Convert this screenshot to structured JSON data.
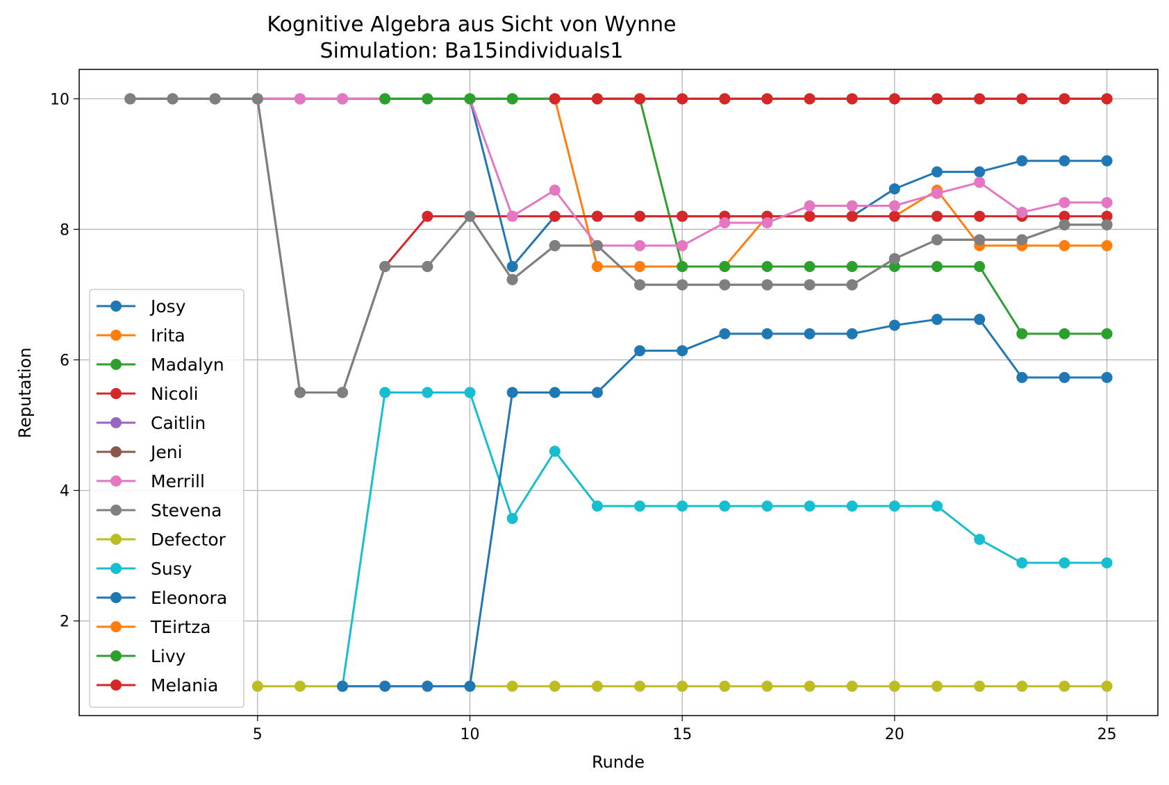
{
  "chart_data": {
    "type": "line",
    "title": "Kognitive Algebra aus Sicht von Wynne",
    "subtitle": "Simulation: Ba15individuals1",
    "xlabel": "Runde",
    "ylabel": "Reputation",
    "xlim": [
      0.8,
      26.2
    ],
    "ylim": [
      0.55,
      10.45
    ],
    "xticks": [
      5,
      10,
      15,
      20,
      25
    ],
    "yticks": [
      2,
      4,
      6,
      8,
      10
    ],
    "grid": true,
    "legend_position": "lower-left",
    "series": [
      {
        "name": "Josy",
        "color": "#1f77b4",
        "x": [
          2,
          3,
          4,
          5,
          6,
          7,
          8,
          9,
          10,
          11,
          12,
          13,
          14,
          15,
          16,
          17,
          18,
          19,
          20,
          21,
          22,
          23,
          24,
          25
        ],
        "y": [
          10,
          10,
          10,
          10,
          10,
          10,
          10,
          10,
          10,
          7.43,
          8.2,
          8.2,
          8.2,
          8.2,
          8.2,
          8.2,
          8.2,
          8.2,
          8.62,
          8.88,
          8.88,
          9.05,
          9.05,
          9.05
        ]
      },
      {
        "name": "Irita",
        "color": "#ff7f0e",
        "x": [
          2,
          3,
          4,
          5,
          6,
          7,
          8,
          9,
          10,
          11,
          12,
          13,
          14,
          15,
          16,
          17,
          18,
          19,
          20,
          21,
          22,
          23,
          24,
          25
        ],
        "y": [
          10,
          10,
          10,
          10,
          10,
          10,
          10,
          10,
          10,
          10,
          10,
          7.43,
          7.43,
          7.43,
          7.43,
          8.2,
          8.2,
          8.2,
          8.2,
          8.6,
          7.75,
          7.75,
          7.75,
          7.75
        ]
      },
      {
        "name": "Madalyn",
        "color": "#2ca02c",
        "x": [
          2,
          3,
          4,
          5,
          6,
          7,
          8,
          9,
          10,
          11,
          12,
          13,
          14,
          15,
          16,
          17,
          18,
          19,
          20,
          21,
          22,
          23,
          24,
          25
        ],
        "y": [
          10,
          10,
          10,
          10,
          10,
          10,
          10,
          10,
          10,
          10,
          10,
          10,
          10,
          7.43,
          7.43,
          7.43,
          7.43,
          7.43,
          7.43,
          7.43,
          7.43,
          6.4,
          6.4,
          6.4
        ]
      },
      {
        "name": "Nicoli",
        "color": "#d62728",
        "x": [
          2,
          3,
          4,
          5,
          6,
          7,
          8,
          9,
          10,
          11,
          12,
          13,
          14,
          15,
          16,
          17,
          18,
          19,
          20,
          21,
          22,
          23,
          24,
          25
        ],
        "y": [
          10,
          10,
          10,
          10,
          5.5,
          5.5,
          7.43,
          8.2,
          8.2,
          8.2,
          8.2,
          8.2,
          8.2,
          8.2,
          8.2,
          8.2,
          8.2,
          8.2,
          8.2,
          8.2,
          8.2,
          8.2,
          8.2,
          8.2
        ]
      },
      {
        "name": "Caitlin",
        "color": "#9467bd",
        "x": [
          2,
          3,
          4,
          5,
          6,
          7,
          8,
          9,
          10,
          11,
          12,
          13,
          14,
          15,
          16,
          17,
          18,
          19,
          20,
          21,
          22,
          23,
          24,
          25
        ],
        "y": [
          10,
          10,
          10,
          10,
          10,
          10,
          10,
          10,
          10,
          10,
          10,
          10,
          10,
          10,
          10,
          10,
          10,
          10,
          10,
          10,
          10,
          10,
          10,
          10
        ]
      },
      {
        "name": "Jeni",
        "color": "#8c564b",
        "x": [
          2,
          3,
          4,
          5,
          6,
          7,
          8,
          9,
          10,
          11,
          12,
          13,
          14,
          15,
          16,
          17,
          18,
          19,
          20,
          21,
          22,
          23,
          24,
          25
        ],
        "y": [
          10,
          10,
          10,
          10,
          5.5,
          5.5,
          7.43,
          7.43,
          8.2,
          7.23,
          7.75,
          7.75,
          7.15,
          7.15,
          7.15,
          7.15,
          7.15,
          7.15,
          7.55,
          7.84,
          7.84,
          7.84,
          8.07,
          8.07
        ]
      },
      {
        "name": "Merrill",
        "color": "#e377c2",
        "x": [
          2,
          3,
          4,
          5,
          6,
          7,
          8,
          9,
          10,
          11,
          12,
          13,
          14,
          15,
          16,
          17,
          18,
          19,
          20,
          21,
          22,
          23,
          24,
          25
        ],
        "y": [
          10,
          10,
          10,
          10,
          10,
          10,
          10,
          10,
          10,
          8.2,
          8.6,
          7.75,
          7.75,
          7.75,
          8.1,
          8.1,
          8.36,
          8.36,
          8.36,
          8.55,
          8.72,
          8.26,
          8.41,
          8.41
        ]
      },
      {
        "name": "Stevena",
        "color": "#7f7f7f",
        "x": [
          2,
          3,
          4,
          5,
          6,
          7,
          8,
          9,
          10,
          11,
          12,
          13,
          14,
          15,
          16,
          17,
          18,
          19,
          20,
          21,
          22,
          23,
          24,
          25
        ],
        "y": [
          10,
          10,
          10,
          10,
          5.5,
          5.5,
          7.43,
          7.43,
          8.2,
          7.23,
          7.75,
          7.75,
          7.15,
          7.15,
          7.15,
          7.15,
          7.15,
          7.15,
          7.55,
          7.84,
          7.84,
          7.84,
          8.07,
          8.07
        ]
      },
      {
        "name": "Defector",
        "color": "#bcbd22",
        "x": [
          5,
          6,
          7,
          8,
          9,
          10,
          11,
          12,
          13,
          14,
          15,
          16,
          17,
          18,
          19,
          20,
          21,
          22,
          23,
          24,
          25
        ],
        "y": [
          1,
          1,
          1,
          1,
          1,
          1,
          1,
          1,
          1,
          1,
          1,
          1,
          1,
          1,
          1,
          1,
          1,
          1,
          1,
          1,
          1
        ]
      },
      {
        "name": "Susy",
        "color": "#17becf",
        "x": [
          7,
          8,
          9,
          10,
          11,
          12,
          13,
          14,
          15,
          16,
          17,
          18,
          19,
          20,
          21,
          22,
          23,
          24,
          25
        ],
        "y": [
          1,
          5.5,
          5.5,
          5.5,
          3.57,
          4.6,
          3.76,
          3.76,
          3.76,
          3.76,
          3.76,
          3.76,
          3.76,
          3.76,
          3.76,
          3.25,
          2.89,
          2.89,
          2.89
        ]
      },
      {
        "name": "Eleonora",
        "color": "#1f77b4",
        "x": [
          7,
          8,
          9,
          10,
          11,
          12,
          13,
          14,
          15,
          16,
          17,
          18,
          19,
          20,
          21,
          22,
          23,
          24,
          25
        ],
        "y": [
          1,
          1,
          1,
          1,
          5.5,
          5.5,
          5.5,
          6.14,
          6.14,
          6.4,
          6.4,
          6.4,
          6.4,
          6.53,
          6.62,
          6.62,
          5.73,
          5.73,
          5.73
        ]
      },
      {
        "name": "TEirtza",
        "color": "#ff7f0e",
        "x": [
          8,
          9,
          10,
          11,
          12,
          13,
          14,
          15,
          16,
          17,
          18,
          19,
          20,
          21,
          22,
          23,
          24,
          25
        ],
        "y": [
          10,
          10,
          10,
          10,
          10,
          10,
          10,
          10,
          10,
          10,
          10,
          10,
          10,
          10,
          10,
          10,
          10,
          10
        ]
      },
      {
        "name": "Livy",
        "color": "#2ca02c",
        "x": [
          8,
          9,
          10,
          11,
          12,
          13,
          14,
          15,
          16,
          17,
          18,
          19,
          20,
          21,
          22,
          23,
          24,
          25
        ],
        "y": [
          10,
          10,
          10,
          10,
          10,
          10,
          10,
          10,
          10,
          10,
          10,
          10,
          10,
          10,
          10,
          10,
          10,
          10
        ]
      },
      {
        "name": "Melania",
        "color": "#d62728",
        "x": [
          12,
          13,
          14,
          15,
          16,
          17,
          18,
          19,
          20,
          21,
          22,
          23,
          24,
          25
        ],
        "y": [
          10,
          10,
          10,
          10,
          10,
          10,
          10,
          10,
          10,
          10,
          10,
          10,
          10,
          10
        ]
      }
    ]
  }
}
